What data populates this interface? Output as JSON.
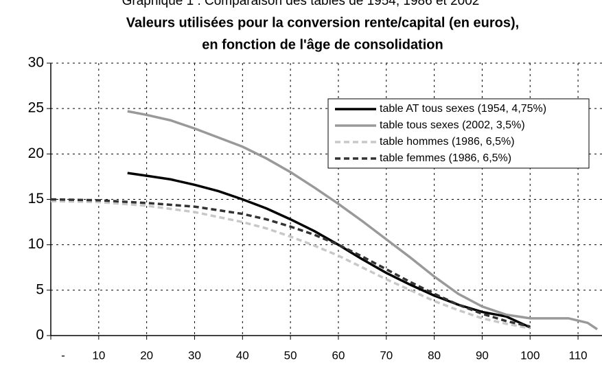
{
  "chart_data": {
    "type": "line",
    "caption": "Graphique 1 : Comparaison des tables de 1954, 1986 et 2002",
    "title_lines": [
      "Valeurs utilisées pour la conversion rente/capital (en euros),",
      "en fonction de l'âge de consolidation"
    ],
    "xlim": [
      0,
      115
    ],
    "xticks": [
      {
        "value": 0,
        "label": "-"
      },
      10,
      20,
      30,
      40,
      50,
      60,
      70,
      80,
      90,
      100,
      110
    ],
    "ylim": [
      0,
      30
    ],
    "yticks": [
      0,
      5,
      10,
      15,
      20,
      25,
      30
    ],
    "grid": true,
    "legend": "top-right",
    "series": [
      {
        "name": "table AT  tous sexes (1954, 4,75%)",
        "color": "#000000",
        "dashed": false,
        "x": [
          16,
          20,
          25,
          30,
          35,
          40,
          45,
          50,
          55,
          60,
          65,
          70,
          75,
          80,
          85,
          90,
          95,
          100
        ],
        "values": [
          17.9,
          17.6,
          17.2,
          16.6,
          15.9,
          15.0,
          14.0,
          12.8,
          11.5,
          10.0,
          8.4,
          6.9,
          5.6,
          4.4,
          3.4,
          2.6,
          2.1,
          0.9
        ]
      },
      {
        "name": "table tous sexes (2002, 3,5%)",
        "color": "#999999",
        "dashed": false,
        "x": [
          16,
          20,
          25,
          30,
          35,
          40,
          45,
          50,
          55,
          60,
          65,
          70,
          75,
          80,
          85,
          90,
          95,
          100,
          105,
          108,
          112,
          114
        ],
        "values": [
          24.7,
          24.3,
          23.7,
          22.8,
          21.8,
          20.8,
          19.5,
          18.0,
          16.3,
          14.5,
          12.6,
          10.6,
          8.6,
          6.5,
          4.6,
          3.2,
          2.3,
          1.9,
          1.9,
          1.9,
          1.4,
          0.7
        ]
      },
      {
        "name": "table hommes (1986, 6,5%)",
        "color": "#c8c8c8",
        "dashed": true,
        "x": [
          0,
          10,
          20,
          30,
          40,
          45,
          50,
          55,
          60,
          65,
          70,
          75,
          80,
          85,
          90,
          95,
          100
        ],
        "values": [
          14.8,
          14.7,
          14.3,
          13.6,
          12.5,
          11.8,
          10.9,
          9.9,
          8.8,
          7.5,
          6.2,
          5.0,
          3.8,
          2.8,
          1.9,
          1.3,
          0.8
        ]
      },
      {
        "name": "table femmes (1986, 6,5%)",
        "color": "#333333",
        "dashed": true,
        "x": [
          0,
          10,
          20,
          30,
          40,
          45,
          50,
          55,
          60,
          65,
          70,
          75,
          80,
          85,
          90,
          95,
          100
        ],
        "values": [
          15.0,
          14.9,
          14.6,
          14.2,
          13.4,
          12.8,
          12.0,
          11.1,
          10.0,
          8.7,
          7.3,
          5.9,
          4.6,
          3.4,
          2.4,
          1.6,
          1.0
        ]
      }
    ]
  }
}
